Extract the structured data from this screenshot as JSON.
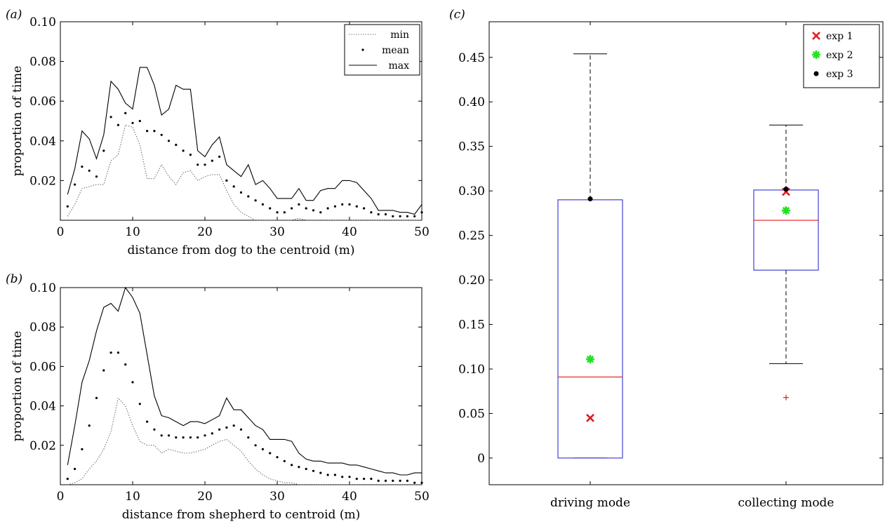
{
  "chart_data": [
    {
      "id": "a",
      "type": "line",
      "panel_label": "(a)",
      "xlabel": "distance from dog to the centroid (m)",
      "ylabel": "proportion of time",
      "xlim": [
        0,
        50
      ],
      "ylim": [
        0,
        0.1
      ],
      "xticks": [
        0,
        10,
        20,
        30,
        40,
        50
      ],
      "yticks": [
        0.02,
        0.04,
        0.06,
        0.08,
        0.1
      ],
      "xtick_labels": [
        "0",
        "10",
        "20",
        "30",
        "40",
        "50"
      ],
      "ytick_labels": [
        "0.02",
        "0.04",
        "0.06",
        "0.08",
        "0.10"
      ],
      "legend_position": "top-right",
      "x": [
        1,
        2,
        3,
        4,
        5,
        6,
        7,
        8,
        9,
        10,
        11,
        12,
        13,
        14,
        15,
        16,
        17,
        18,
        19,
        20,
        21,
        22,
        23,
        24,
        25,
        26,
        27,
        28,
        29,
        30,
        31,
        32,
        33,
        34,
        35,
        36,
        37,
        38,
        39,
        40,
        41,
        42,
        43,
        44,
        45,
        46,
        47,
        48,
        49,
        50
      ],
      "series": [
        {
          "name": "min",
          "style": "dotted",
          "values": [
            0.002,
            0.008,
            0.016,
            0.017,
            0.018,
            0.018,
            0.03,
            0.033,
            0.048,
            0.047,
            0.038,
            0.021,
            0.021,
            0.028,
            0.022,
            0.018,
            0.024,
            0.025,
            0.02,
            0.022,
            0.023,
            0.023,
            0.015,
            0.008,
            0.004,
            0.002,
            0,
            0,
            0,
            0,
            0,
            0,
            0.001,
            0,
            0,
            0,
            0,
            0,
            0,
            0,
            0,
            0,
            0,
            0,
            0,
            0,
            0,
            0,
            0,
            0
          ]
        },
        {
          "name": "mean",
          "style": "points",
          "values": [
            0.007,
            0.018,
            0.027,
            0.025,
            0.022,
            0.035,
            0.052,
            0.048,
            0.054,
            0.049,
            0.05,
            0.045,
            0.045,
            0.043,
            0.04,
            0.038,
            0.035,
            0.033,
            0.028,
            0.028,
            0.03,
            0.032,
            0.02,
            0.017,
            0.014,
            0.012,
            0.01,
            0.008,
            0.006,
            0.004,
            0.004,
            0.006,
            0.008,
            0.006,
            0.005,
            0.004,
            0.006,
            0.007,
            0.008,
            0.008,
            0.007,
            0.006,
            0.004,
            0.003,
            0.003,
            0.002,
            0.002,
            0.002,
            0.002,
            0.004
          ]
        },
        {
          "name": "max",
          "style": "solid",
          "values": [
            0.013,
            0.026,
            0.045,
            0.041,
            0.031,
            0.043,
            0.07,
            0.066,
            0.059,
            0.056,
            0.077,
            0.077,
            0.068,
            0.053,
            0.056,
            0.068,
            0.066,
            0.066,
            0.035,
            0.032,
            0.038,
            0.042,
            0.028,
            0.025,
            0.022,
            0.028,
            0.018,
            0.02,
            0.016,
            0.011,
            0.011,
            0.011,
            0.016,
            0.01,
            0.01,
            0.015,
            0.016,
            0.016,
            0.02,
            0.02,
            0.019,
            0.015,
            0.011,
            0.005,
            0.005,
            0.005,
            0.004,
            0.004,
            0.003,
            0.008
          ]
        }
      ]
    },
    {
      "id": "b",
      "type": "line",
      "panel_label": "(b)",
      "xlabel": "distance from shepherd to centroid (m)",
      "ylabel": "proportion of time",
      "xlim": [
        0,
        50
      ],
      "ylim": [
        0,
        0.1
      ],
      "xticks": [
        0,
        10,
        20,
        30,
        40,
        50
      ],
      "yticks": [
        0.02,
        0.04,
        0.06,
        0.08,
        0.1
      ],
      "xtick_labels": [
        "0",
        "10",
        "20",
        "30",
        "40",
        "50"
      ],
      "ytick_labels": [
        "0.02",
        "0.04",
        "0.06",
        "0.08",
        "0.10"
      ],
      "x": [
        1,
        2,
        3,
        4,
        5,
        6,
        7,
        8,
        9,
        10,
        11,
        12,
        13,
        14,
        15,
        16,
        17,
        18,
        19,
        20,
        21,
        22,
        23,
        24,
        25,
        26,
        27,
        28,
        29,
        30,
        31,
        32,
        33,
        34,
        35,
        36,
        37,
        38,
        39,
        40,
        41,
        42,
        43,
        44,
        45,
        46,
        47,
        48,
        49,
        50
      ],
      "series": [
        {
          "name": "min",
          "style": "dotted",
          "values": [
            0,
            0.001,
            0.003,
            0.008,
            0.012,
            0.018,
            0.027,
            0.044,
            0.04,
            0.03,
            0.022,
            0.02,
            0.02,
            0.016,
            0.018,
            0.017,
            0.016,
            0.016,
            0.017,
            0.018,
            0.02,
            0.022,
            0.023,
            0.02,
            0.017,
            0.012,
            0.008,
            0.005,
            0.003,
            0.002,
            0.001,
            0.001,
            0,
            0,
            0,
            0,
            0,
            0,
            0,
            0,
            0,
            0,
            0,
            0,
            0,
            0,
            0,
            0,
            0,
            0
          ]
        },
        {
          "name": "mean",
          "style": "points",
          "values": [
            0.003,
            0.008,
            0.018,
            0.03,
            0.044,
            0.058,
            0.067,
            0.067,
            0.061,
            0.052,
            0.041,
            0.032,
            0.028,
            0.025,
            0.025,
            0.024,
            0.024,
            0.024,
            0.024,
            0.025,
            0.026,
            0.028,
            0.029,
            0.03,
            0.028,
            0.024,
            0.02,
            0.018,
            0.016,
            0.014,
            0.012,
            0.01,
            0.009,
            0.008,
            0.007,
            0.006,
            0.005,
            0.005,
            0.004,
            0.004,
            0.003,
            0.003,
            0.003,
            0.002,
            0.002,
            0.002,
            0.002,
            0.002,
            0.001,
            0.001
          ]
        },
        {
          "name": "max",
          "style": "solid",
          "values": [
            0.01,
            0.03,
            0.052,
            0.063,
            0.078,
            0.09,
            0.092,
            0.088,
            0.1,
            0.095,
            0.087,
            0.066,
            0.045,
            0.035,
            0.034,
            0.032,
            0.03,
            0.032,
            0.032,
            0.031,
            0.033,
            0.035,
            0.044,
            0.038,
            0.038,
            0.034,
            0.03,
            0.028,
            0.023,
            0.023,
            0.023,
            0.022,
            0.016,
            0.013,
            0.012,
            0.012,
            0.011,
            0.011,
            0.011,
            0.01,
            0.01,
            0.009,
            0.008,
            0.007,
            0.006,
            0.006,
            0.005,
            0.005,
            0.006,
            0.006
          ]
        }
      ]
    },
    {
      "id": "c",
      "type": "box",
      "panel_label": "(c)",
      "ylim": [
        -0.03,
        0.49
      ],
      "yticks": [
        0,
        0.05,
        0.1,
        0.15,
        0.2,
        0.25,
        0.3,
        0.35,
        0.4,
        0.45
      ],
      "ytick_labels": [
        "0",
        "0.05",
        "0.10",
        "0.15",
        "0.20",
        "0.25",
        "0.30",
        "0.35",
        "0.40",
        "0.45"
      ],
      "categories": [
        "driving mode",
        "collecting mode"
      ],
      "boxes": [
        {
          "category": "driving mode",
          "whisker_low": 0,
          "q1": 0,
          "median": 0.091,
          "q3": 0.29,
          "whisker_high": 0.454,
          "outliers": []
        },
        {
          "category": "collecting mode",
          "whisker_low": 0.106,
          "q1": 0.211,
          "median": 0.267,
          "q3": 0.301,
          "whisker_high": 0.374,
          "outliers": [
            0.068
          ]
        }
      ],
      "legend_position": "top-right",
      "points": [
        {
          "name": "exp 1",
          "marker": "x",
          "color": "#e31a1c",
          "values": [
            0.045,
            0.299
          ]
        },
        {
          "name": "exp 2",
          "marker": "asterisk",
          "color": "#22e022",
          "values": [
            0.111,
            0.278
          ]
        },
        {
          "name": "exp 3",
          "marker": "dot",
          "color": "#000000",
          "values": [
            0.291,
            0.302
          ]
        }
      ],
      "colors": {
        "box": "#3030d0",
        "median": "#e31a1c",
        "outlier": "#e31a1c",
        "whisker": "#000000"
      }
    }
  ]
}
